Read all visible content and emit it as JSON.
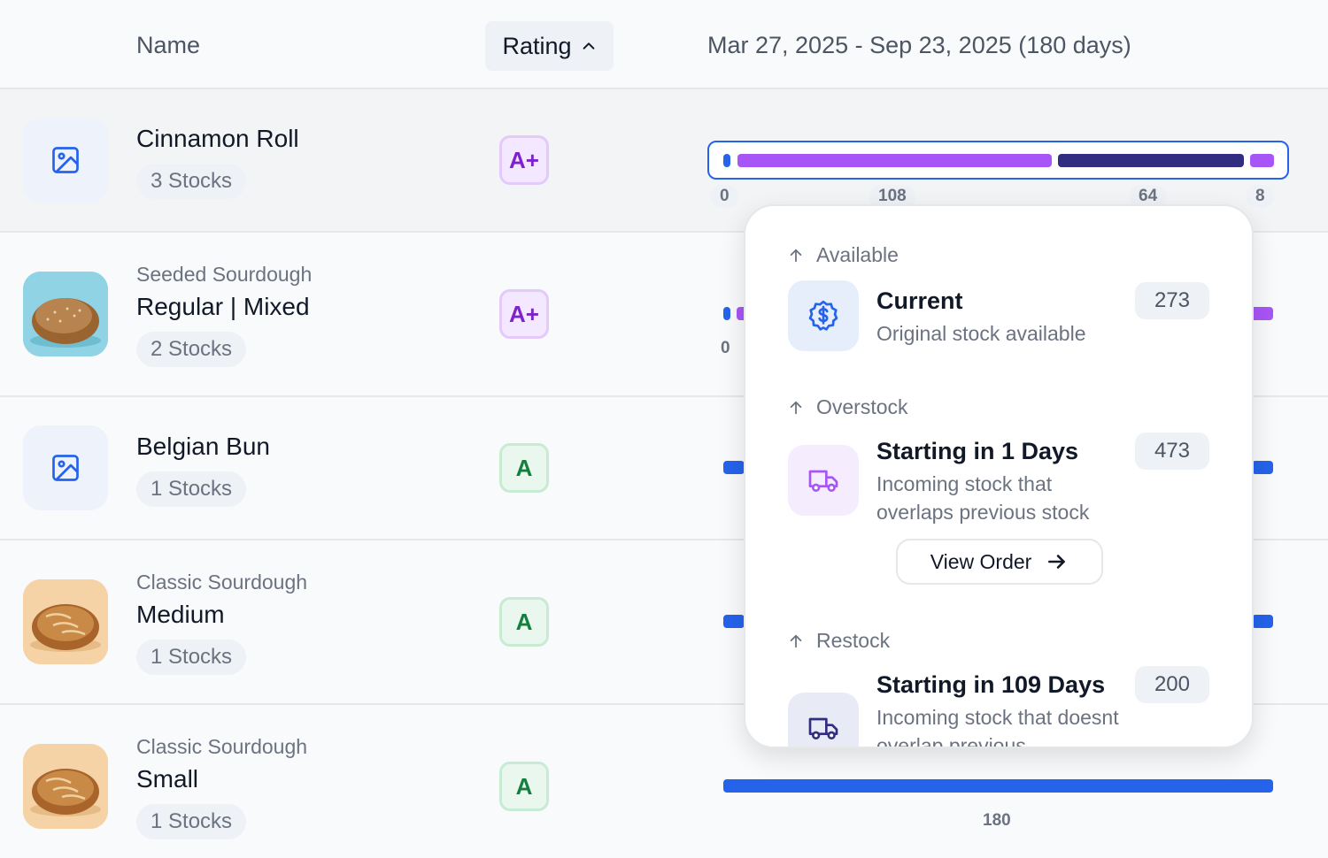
{
  "header": {
    "name_label": "Name",
    "rating_label": "Rating",
    "date_range": "Mar 27, 2025 - Sep 23, 2025 (180 days)"
  },
  "rows": [
    {
      "subtitle": "",
      "name": "Cinnamon Roll",
      "stocks": "3 Stocks",
      "rating": "A+",
      "thumbnail": "image-placeholder-icon",
      "ticks": [
        "0",
        "108",
        "64",
        "8"
      ]
    },
    {
      "subtitle": "Seeded Sourdough",
      "name": "Regular | Mixed",
      "stocks": "2 Stocks",
      "rating": "A+",
      "thumbnail": "seeded-bread-photo",
      "ticks": [
        "0"
      ]
    },
    {
      "subtitle": "",
      "name": "Belgian Bun",
      "stocks": "1 Stocks",
      "rating": "A",
      "thumbnail": "image-placeholder-icon",
      "ticks": []
    },
    {
      "subtitle": "Classic Sourdough",
      "name": "Medium",
      "stocks": "1 Stocks",
      "rating": "A",
      "thumbnail": "sourdough-bread-photo",
      "ticks": []
    },
    {
      "subtitle": "Classic Sourdough",
      "name": "Small",
      "stocks": "1 Stocks",
      "rating": "A",
      "thumbnail": "sourdough-bread-photo",
      "ticks": [
        "180"
      ]
    }
  ],
  "popover": {
    "sections": [
      {
        "heading": "Available",
        "title": "Current",
        "description": "Original stock available",
        "count": "273",
        "icon": "dollar-badge-icon"
      },
      {
        "heading": "Overstock",
        "title": "Starting in 1 Days",
        "description": "Incoming stock that overlaps previous stock",
        "count": "473",
        "icon": "truck-icon",
        "action": "View Order"
      },
      {
        "heading": "Restock",
        "title": "Starting in 109 Days",
        "description": "Incoming stock that doesnt overlap previous",
        "count": "200",
        "icon": "truck-icon"
      }
    ]
  },
  "colors": {
    "blue": "#2563eb",
    "purple": "#a855f7",
    "navy": "#312e81",
    "aplus": "#7e22ce",
    "a": "#15803d"
  }
}
